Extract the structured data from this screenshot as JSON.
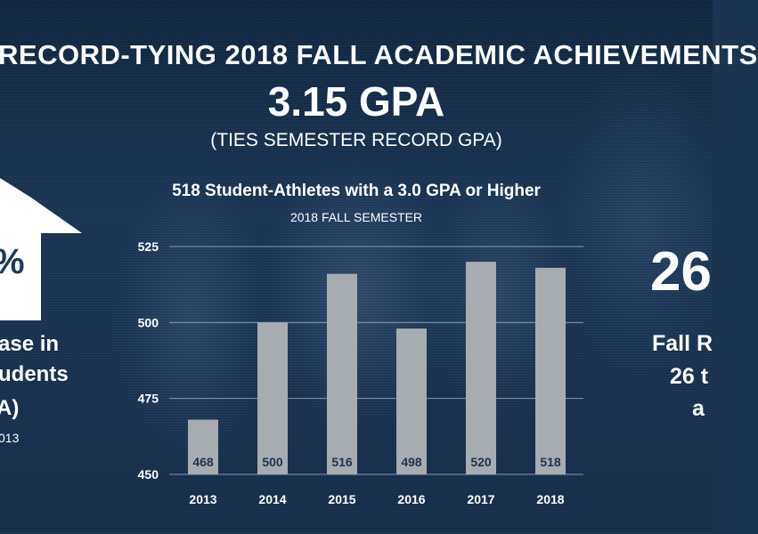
{
  "headline": "RECORD-TYING 2018 FALL ACADEMIC ACHIEVEMENTS",
  "gpa": "3.15 GPA",
  "gpa_sub": "(TIES SEMESTER RECORD GPA)",
  "left_panel": {
    "percent": "%",
    "line1": "ase in",
    "line2": "udents",
    "line3": "A)",
    "line4": "013"
  },
  "right_panel": {
    "number": "26",
    "line1": "Fall R",
    "line2": "26 t",
    "line3": "a"
  },
  "colors": {
    "bar": "#a7acb1",
    "bar_label": "#1e3350",
    "grid": "#8a99ad"
  },
  "chart_data": {
    "type": "bar",
    "title": "518 Student-Athletes with a 3.0 GPA or Higher",
    "subtitle": "2018 FALL SEMESTER",
    "categories": [
      "2013",
      "2014",
      "2015",
      "2016",
      "2017",
      "2018"
    ],
    "values": [
      468,
      500,
      516,
      498,
      520,
      518
    ],
    "yticks": [
      "525",
      "500",
      "475",
      "450"
    ],
    "ylim": [
      450,
      525
    ],
    "grid": true,
    "xlabel": "",
    "ylabel": ""
  }
}
